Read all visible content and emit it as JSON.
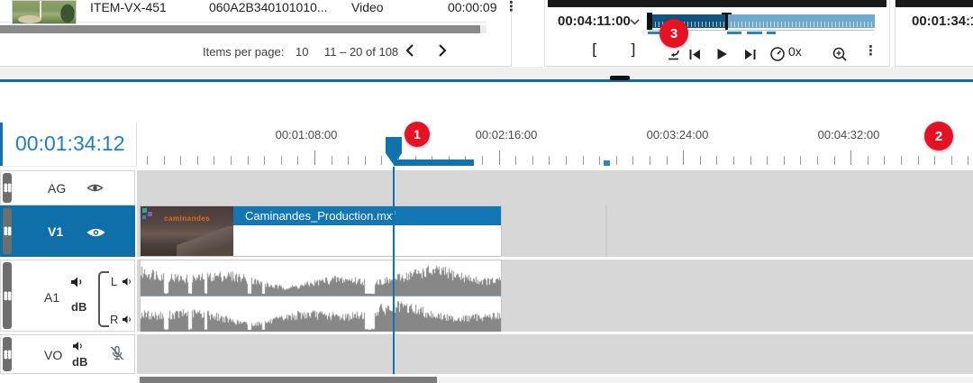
{
  "media_panel": {
    "row": {
      "id": "ITEM-VX-451",
      "umid": "060A2B340101010...",
      "type": "Video",
      "duration": "00:00:09",
      "menu_icon": "⋮"
    },
    "pagination": {
      "items_per_page_label": "Items per page:",
      "items_per_page_value": "10",
      "range_text": "11 – 20 of 108"
    }
  },
  "player": {
    "timecode": "00:04:11:00",
    "speed_label": "0x",
    "mark_in": "[",
    "mark_out": "]",
    "menu_icon": "⋮"
  },
  "inspector": {
    "timecode": "00:01:34:12"
  },
  "annotations": {
    "step1": "1",
    "step2": "2",
    "step3": "3"
  },
  "timeline": {
    "current_timecode": "00:01:34:12",
    "ruler_labels": [
      "00:01:08:00",
      "00:02:16:00",
      "00:03:24:00",
      "00:04:32:00"
    ],
    "zoom_out_icon": "−",
    "zoom_in_icon": "+",
    "clip": {
      "name": "Caminandes_Production.mxf",
      "thumb_text": "caminandes"
    },
    "tracks": {
      "ag": {
        "label": "AG"
      },
      "v1": {
        "label": "V1"
      },
      "a1": {
        "label": "A1",
        "gain": "dB",
        "left": "L",
        "right": "R"
      },
      "vo": {
        "label": "VO",
        "gain": "dB"
      }
    }
  },
  "colors": {
    "accent": "#1272ad",
    "badge_red": "#e81123"
  }
}
